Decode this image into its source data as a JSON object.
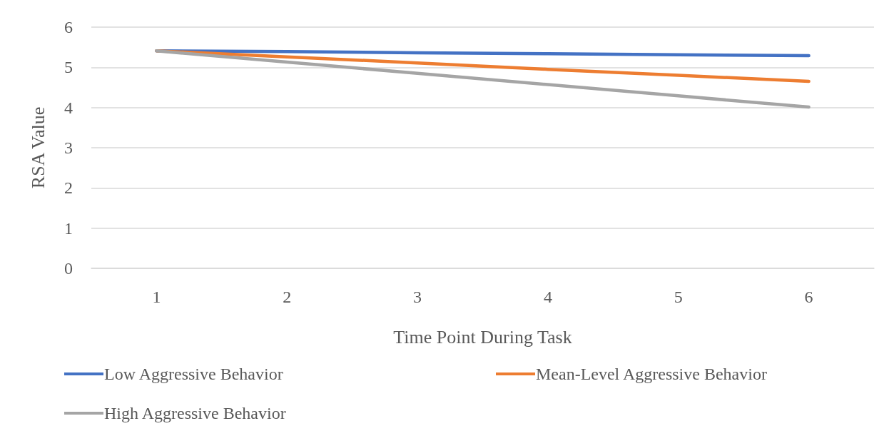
{
  "chart_data": {
    "type": "line",
    "xlabel": "Time Point During Task",
    "ylabel": "RSA Value",
    "categories": [
      "1",
      "2",
      "3",
      "4",
      "5",
      "6"
    ],
    "series": [
      {
        "name": "Low Aggressive Behavior",
        "color": "#4472c4",
        "values": [
          5.41,
          5.39,
          5.36,
          5.34,
          5.31,
          5.29
        ]
      },
      {
        "name": "Mean-Level Aggressive Behavior",
        "color": "#ed7d31",
        "values": [
          5.41,
          5.26,
          5.11,
          4.95,
          4.8,
          4.65
        ]
      },
      {
        "name": "High Aggressive Behavior",
        "color": "#a5a5a5",
        "values": [
          5.41,
          5.13,
          4.85,
          4.57,
          4.29,
          4.01
        ]
      }
    ],
    "ylim": [
      0,
      6
    ],
    "yticks": [
      0,
      1,
      2,
      3,
      4,
      5,
      6
    ],
    "grid": "y",
    "legend": "bottom",
    "marker": "none",
    "line_style": "solid"
  }
}
